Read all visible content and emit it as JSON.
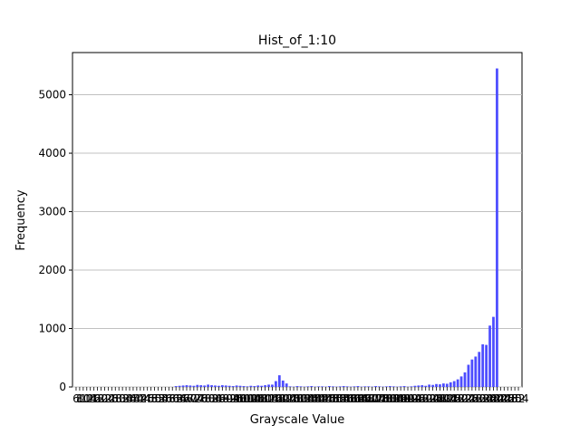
{
  "chart_data": {
    "type": "bar",
    "title": "Hist_of_1:10",
    "xlabel": "Grayscale Value",
    "ylabel": "Frequency",
    "categories": [
      6,
      8,
      10,
      12,
      14,
      16,
      18,
      20,
      22,
      24,
      26,
      28,
      30,
      32,
      34,
      36,
      38,
      40,
      42,
      44,
      46,
      48,
      50,
      52,
      54,
      56,
      58,
      60,
      62,
      64,
      66,
      68,
      70,
      72,
      74,
      76,
      78,
      80,
      82,
      84,
      86,
      88,
      90,
      92,
      94,
      96,
      98,
      100,
      102,
      104,
      106,
      108,
      110,
      112,
      114,
      116,
      118,
      120,
      122,
      124,
      126,
      128,
      130,
      132,
      134,
      136,
      138,
      140,
      142,
      144,
      146,
      148,
      150,
      152,
      154,
      156,
      158,
      160,
      162,
      164,
      166,
      168,
      170,
      172,
      174,
      176,
      178,
      180,
      182,
      184,
      186,
      188,
      190,
      192,
      194,
      196,
      198,
      200,
      202,
      204,
      206,
      208,
      210,
      212,
      214,
      216,
      218,
      220,
      222,
      224,
      226,
      228,
      230,
      232,
      234,
      236,
      238,
      240,
      242,
      244,
      246,
      248,
      250,
      252,
      254
    ],
    "values": [
      0,
      0,
      0,
      0,
      0,
      0,
      0,
      0,
      0,
      0,
      0,
      0,
      0,
      0,
      0,
      0,
      0,
      0,
      0,
      0,
      0,
      0,
      0,
      0,
      0,
      0,
      0,
      0,
      15,
      20,
      25,
      30,
      25,
      20,
      35,
      30,
      25,
      40,
      30,
      25,
      20,
      30,
      25,
      20,
      15,
      25,
      20,
      15,
      10,
      20,
      15,
      25,
      20,
      30,
      40,
      40,
      100,
      200,
      110,
      60,
      10,
      5,
      15,
      10,
      5,
      10,
      15,
      5,
      10,
      10,
      5,
      15,
      10,
      5,
      10,
      15,
      10,
      5,
      10,
      15,
      5,
      10,
      10,
      5,
      15,
      10,
      5,
      10,
      15,
      10,
      5,
      10,
      15,
      5,
      10,
      20,
      25,
      30,
      20,
      40,
      35,
      50,
      45,
      60,
      55,
      80,
      100,
      130,
      180,
      250,
      380,
      470,
      520,
      600,
      730,
      720,
      1050,
      1200,
      5450,
      0,
      0,
      0,
      0,
      0,
      0
    ],
    "color": "#4d4dff",
    "ylim": [
      0,
      5722
    ],
    "yticks": [
      0,
      1000,
      2000,
      3000,
      4000,
      5000
    ],
    "grid": true
  }
}
